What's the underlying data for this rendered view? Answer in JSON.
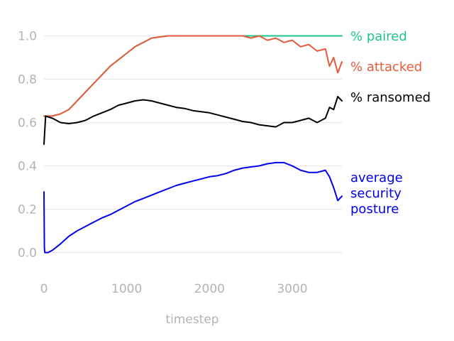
{
  "chart_data": {
    "type": "line",
    "title": "",
    "xlabel": "timestep",
    "ylabel": "",
    "xlim": [
      0,
      3600
    ],
    "ylim": [
      -0.1,
      1.1
    ],
    "grid": true,
    "legend": "inline-right",
    "x_ticks": [
      0,
      1000,
      2000,
      3000
    ],
    "x_tick_labels": [
      "0",
      "1000",
      "2000",
      "3000"
    ],
    "y_ticks": [
      0.0,
      0.2,
      0.4,
      0.6,
      0.8,
      1.0
    ],
    "y_tick_labels": [
      "0.0",
      "0.2",
      "0.4",
      "0.6",
      "0.8",
      "1.0"
    ],
    "series": [
      {
        "name": "% paired",
        "color": "#1fc48a",
        "x": [
          0,
          100,
          200,
          300,
          400,
          500,
          600,
          700,
          800,
          900,
          1000,
          1100,
          1200,
          1300,
          1400,
          1500,
          1600,
          1700,
          1800,
          2000,
          2200,
          2400,
          2600,
          2800,
          3000,
          3200,
          3400,
          3600
        ],
        "y": [
          0.63,
          0.63,
          0.64,
          0.66,
          0.7,
          0.74,
          0.78,
          0.82,
          0.86,
          0.89,
          0.92,
          0.95,
          0.97,
          0.99,
          0.995,
          1.0,
          1.0,
          1.0,
          1.0,
          1.0,
          1.0,
          1.0,
          1.0,
          1.0,
          1.0,
          1.0,
          1.0,
          1.0
        ]
      },
      {
        "name": "% attacked",
        "color": "#e65a3c",
        "x": [
          0,
          100,
          200,
          300,
          400,
          500,
          600,
          700,
          800,
          900,
          1000,
          1100,
          1200,
          1300,
          1400,
          1500,
          1600,
          1800,
          2000,
          2200,
          2400,
          2500,
          2600,
          2700,
          2800,
          2900,
          3000,
          3100,
          3200,
          3300,
          3400,
          3450,
          3500,
          3550,
          3600
        ],
        "y": [
          0.63,
          0.63,
          0.64,
          0.66,
          0.7,
          0.74,
          0.78,
          0.82,
          0.86,
          0.89,
          0.92,
          0.95,
          0.97,
          0.99,
          0.995,
          1.0,
          1.0,
          1.0,
          1.0,
          1.0,
          1.0,
          0.99,
          1.0,
          0.98,
          0.99,
          0.97,
          0.98,
          0.95,
          0.96,
          0.93,
          0.94,
          0.86,
          0.9,
          0.83,
          0.88
        ]
      },
      {
        "name": "% ransomed",
        "color": "#000000",
        "x": [
          0,
          20,
          100,
          200,
          300,
          400,
          500,
          600,
          700,
          800,
          900,
          1000,
          1100,
          1200,
          1300,
          1400,
          1500,
          1600,
          1700,
          1800,
          1900,
          2000,
          2100,
          2200,
          2300,
          2400,
          2500,
          2600,
          2700,
          2800,
          2900,
          3000,
          3100,
          3200,
          3300,
          3400,
          3450,
          3500,
          3550,
          3600
        ],
        "y": [
          0.5,
          0.63,
          0.62,
          0.6,
          0.595,
          0.6,
          0.61,
          0.63,
          0.645,
          0.66,
          0.68,
          0.69,
          0.7,
          0.705,
          0.7,
          0.69,
          0.68,
          0.67,
          0.665,
          0.655,
          0.65,
          0.645,
          0.635,
          0.625,
          0.615,
          0.605,
          0.6,
          0.59,
          0.585,
          0.58,
          0.6,
          0.6,
          0.61,
          0.62,
          0.6,
          0.62,
          0.67,
          0.66,
          0.72,
          0.7
        ]
      },
      {
        "name": "average security posture",
        "color": "#0000ee",
        "x": [
          0,
          5,
          10,
          50,
          100,
          200,
          300,
          400,
          500,
          600,
          700,
          800,
          900,
          1000,
          1100,
          1200,
          1300,
          1400,
          1500,
          1600,
          1700,
          1800,
          1900,
          2000,
          2100,
          2200,
          2300,
          2400,
          2500,
          2600,
          2700,
          2800,
          2900,
          3000,
          3100,
          3200,
          3300,
          3400,
          3450,
          3500,
          3550,
          3600
        ],
        "y": [
          0.28,
          0.02,
          0.0,
          0.0,
          0.01,
          0.04,
          0.075,
          0.1,
          0.12,
          0.14,
          0.16,
          0.175,
          0.195,
          0.215,
          0.235,
          0.25,
          0.265,
          0.28,
          0.295,
          0.31,
          0.32,
          0.33,
          0.34,
          0.35,
          0.355,
          0.365,
          0.38,
          0.39,
          0.395,
          0.4,
          0.41,
          0.415,
          0.415,
          0.4,
          0.38,
          0.37,
          0.37,
          0.38,
          0.35,
          0.3,
          0.24,
          0.26
        ]
      }
    ],
    "series_labels": [
      {
        "name": "% paired",
        "lines": [
          "% paired"
        ],
        "color": "#1fc48a"
      },
      {
        "name": "% attacked",
        "lines": [
          "% attacked"
        ],
        "color": "#e65a3c"
      },
      {
        "name": "% ransomed",
        "lines": [
          "% ransomed"
        ],
        "color": "#000000"
      },
      {
        "name": "average security posture",
        "lines": [
          "average",
          "security",
          "posture"
        ],
        "color": "#0000ee"
      }
    ]
  }
}
